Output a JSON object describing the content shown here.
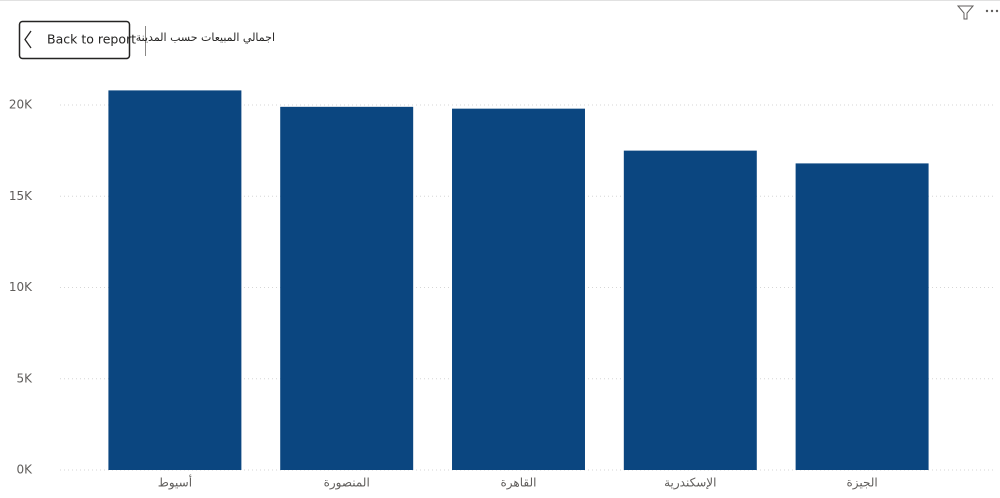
{
  "back_button": "Back to report",
  "chart_data": {
    "type": "bar",
    "title": "اجمالي المبيعات حسب المدينة",
    "categories": [
      "أسيوط",
      "المنصورة",
      "القاهرة",
      "الإسكندرية",
      "الجيزة"
    ],
    "values": [
      20800,
      19900,
      19800,
      17500,
      16800
    ],
    "color": "#0b4680",
    "ylim": [
      0,
      22000
    ],
    "yticks": [
      {
        "value": 0,
        "label": "0K"
      },
      {
        "value": 5000,
        "label": "5K"
      },
      {
        "value": 10000,
        "label": "10K"
      },
      {
        "value": 15000,
        "label": "15K"
      },
      {
        "value": 20000,
        "label": "20K"
      }
    ],
    "grid": true
  }
}
